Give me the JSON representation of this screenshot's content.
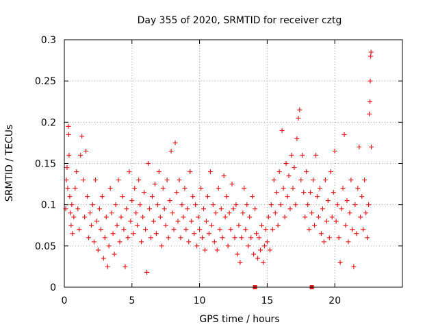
{
  "chart_data": {
    "type": "scatter",
    "title": "Day 355 of 2020, SRMTID for receiver cztg",
    "xlabel": "GPS time / hours",
    "ylabel": "SRMTID / TECUs",
    "xlim": [
      0,
      25
    ],
    "ylim": [
      0,
      0.3
    ],
    "xticks": [
      0,
      5,
      10,
      15,
      20
    ],
    "xtick_labels": [
      "0",
      "5",
      "10",
      "15",
      "20"
    ],
    "yticks": [
      0,
      0.05,
      0.1,
      0.15,
      0.2,
      0.25,
      0.3
    ],
    "ytick_labels": [
      "0",
      "0.05",
      "0.1",
      "0.15",
      "0.2",
      "0.25",
      "0.3"
    ],
    "grid": true,
    "series": [
      {
        "name": "SRMTID",
        "marker": "plus",
        "color": "#e41a1c",
        "x_range": [
          0.0,
          22.7
        ],
        "points": [
          [
            0.1,
            0.095
          ],
          [
            0.15,
            0.13
          ],
          [
            0.2,
            0.145
          ],
          [
            0.25,
            0.12
          ],
          [
            0.3,
            0.195
          ],
          [
            0.32,
            0.185
          ],
          [
            0.35,
            0.16
          ],
          [
            0.4,
            0.11
          ],
          [
            0.45,
            0.09
          ],
          [
            0.5,
            0.075
          ],
          [
            0.55,
            0.1
          ],
          [
            0.6,
            0.065
          ],
          [
            0.7,
            0.085
          ],
          [
            0.8,
            0.12
          ],
          [
            0.9,
            0.14
          ],
          [
            1.0,
            0.095
          ],
          [
            1.1,
            0.07
          ],
          [
            1.2,
            0.16
          ],
          [
            1.3,
            0.183
          ],
          [
            1.4,
            0.13
          ],
          [
            1.5,
            0.085
          ],
          [
            1.6,
            0.165
          ],
          [
            1.7,
            0.11
          ],
          [
            1.8,
            0.06
          ],
          [
            1.9,
            0.09
          ],
          [
            2.0,
            0.075
          ],
          [
            2.1,
            0.1
          ],
          [
            2.2,
            0.055
          ],
          [
            2.3,
            0.13
          ],
          [
            2.4,
            0.08
          ],
          [
            2.5,
            0.045
          ],
          [
            2.6,
            0.095
          ],
          [
            2.7,
            0.07
          ],
          [
            2.8,
            0.11
          ],
          [
            2.9,
            0.035
          ],
          [
            3.0,
            0.06
          ],
          [
            3.1,
            0.085
          ],
          [
            3.2,
            0.025
          ],
          [
            3.3,
            0.05
          ],
          [
            3.4,
            0.12
          ],
          [
            3.5,
            0.09
          ],
          [
            3.6,
            0.065
          ],
          [
            3.7,
            0.04
          ],
          [
            3.8,
            0.1
          ],
          [
            3.9,
            0.075
          ],
          [
            4.0,
            0.13
          ],
          [
            4.1,
            0.055
          ],
          [
            4.2,
            0.085
          ],
          [
            4.3,
            0.11
          ],
          [
            4.4,
            0.07
          ],
          [
            4.5,
            0.025
          ],
          [
            4.6,
            0.095
          ],
          [
            4.7,
            0.06
          ],
          [
            4.8,
            0.14
          ],
          [
            4.9,
            0.08
          ],
          [
            5.0,
            0.105
          ],
          [
            5.1,
            0.065
          ],
          [
            5.2,
            0.12
          ],
          [
            5.3,
            0.09
          ],
          [
            5.4,
            0.075
          ],
          [
            5.5,
            0.13
          ],
          [
            5.6,
            0.1
          ],
          [
            5.7,
            0.055
          ],
          [
            5.8,
            0.085
          ],
          [
            5.9,
            0.115
          ],
          [
            6.0,
            0.07
          ],
          [
            6.1,
            0.018
          ],
          [
            6.2,
            0.15
          ],
          [
            6.3,
            0.095
          ],
          [
            6.4,
            0.06
          ],
          [
            6.5,
            0.11
          ],
          [
            6.6,
            0.08
          ],
          [
            6.7,
            0.125
          ],
          [
            6.8,
            0.065
          ],
          [
            6.9,
            0.1
          ],
          [
            7.0,
            0.14
          ],
          [
            7.1,
            0.085
          ],
          [
            7.2,
            0.05
          ],
          [
            7.3,
            0.12
          ],
          [
            7.4,
            0.095
          ],
          [
            7.5,
            0.075
          ],
          [
            7.6,
            0.13
          ],
          [
            7.7,
            0.06
          ],
          [
            7.8,
            0.105
          ],
          [
            7.9,
            0.165
          ],
          [
            8.0,
            0.09
          ],
          [
            8.1,
            0.07
          ],
          [
            8.2,
            0.175
          ],
          [
            8.3,
            0.115
          ],
          [
            8.4,
            0.08
          ],
          [
            8.5,
            0.13
          ],
          [
            8.6,
            0.06
          ],
          [
            8.7,
            0.1
          ],
          [
            8.8,
            0.085
          ],
          [
            8.9,
            0.12
          ],
          [
            9.0,
            0.07
          ],
          [
            9.1,
            0.095
          ],
          [
            9.2,
            0.055
          ],
          [
            9.3,
            0.14
          ],
          [
            9.4,
            0.08
          ],
          [
            9.5,
            0.11
          ],
          [
            9.6,
            0.065
          ],
          [
            9.7,
            0.1
          ],
          [
            9.8,
            0.05
          ],
          [
            9.9,
            0.085
          ],
          [
            10.0,
            0.07
          ],
          [
            10.1,
            0.12
          ],
          [
            10.2,
            0.06
          ],
          [
            10.3,
            0.095
          ],
          [
            10.4,
            0.045
          ],
          [
            10.5,
            0.08
          ],
          [
            10.6,
            0.11
          ],
          [
            10.7,
            0.065
          ],
          [
            10.8,
            0.14
          ],
          [
            10.9,
            0.075
          ],
          [
            11.0,
            0.1
          ],
          [
            11.1,
            0.055
          ],
          [
            11.2,
            0.09
          ],
          [
            11.3,
            0.045
          ],
          [
            11.4,
            0.12
          ],
          [
            11.5,
            0.07
          ],
          [
            11.6,
            0.095
          ],
          [
            11.7,
            0.06
          ],
          [
            11.8,
            0.135
          ],
          [
            11.9,
            0.085
          ],
          [
            12.0,
            0.11
          ],
          [
            12.1,
            0.05
          ],
          [
            12.2,
            0.09
          ],
          [
            12.3,
            0.07
          ],
          [
            12.4,
            0.125
          ],
          [
            12.5,
            0.095
          ],
          [
            12.6,
            0.06
          ],
          [
            12.7,
            0.1
          ],
          [
            12.8,
            0.04
          ],
          [
            12.9,
            0.075
          ],
          [
            13.0,
            0.03
          ],
          [
            13.1,
            0.06
          ],
          [
            13.2,
            0.09
          ],
          [
            13.3,
            0.12
          ],
          [
            13.4,
            0.07
          ],
          [
            13.5,
            0.1
          ],
          [
            13.6,
            0.05
          ],
          [
            13.7,
            0.085
          ],
          [
            13.8,
            0.06
          ],
          [
            13.9,
            0.11
          ],
          [
            14.0,
            0.04
          ],
          [
            14.1,
            0.095
          ],
          [
            14.2,
            0.065
          ],
          [
            14.3,
            0.035
          ],
          [
            14.4,
            0.06
          ],
          [
            14.5,
            0.045
          ],
          [
            14.6,
            0.075
          ],
          [
            14.7,
            0.03
          ],
          [
            14.8,
            0.05
          ],
          [
            14.9,
            0.07
          ],
          [
            15.0,
            0.055
          ],
          [
            15.1,
            0.085
          ],
          [
            15.2,
            0.045
          ],
          [
            15.3,
            0.1
          ],
          [
            15.4,
            0.07
          ],
          [
            15.5,
            0.13
          ],
          [
            15.6,
            0.09
          ],
          [
            15.7,
            0.115
          ],
          [
            15.8,
            0.075
          ],
          [
            15.9,
            0.14
          ],
          [
            16.0,
            0.1
          ],
          [
            16.1,
            0.19
          ],
          [
            16.2,
            0.12
          ],
          [
            16.3,
            0.085
          ],
          [
            16.4,
            0.15
          ],
          [
            16.5,
            0.11
          ],
          [
            16.6,
            0.135
          ],
          [
            16.7,
            0.095
          ],
          [
            16.8,
            0.16
          ],
          [
            16.9,
            0.12
          ],
          [
            17.0,
            0.145
          ],
          [
            17.1,
            0.1
          ],
          [
            17.2,
            0.18
          ],
          [
            17.3,
            0.205
          ],
          [
            17.4,
            0.215
          ],
          [
            17.5,
            0.13
          ],
          [
            17.6,
            0.16
          ],
          [
            17.7,
            0.115
          ],
          [
            17.8,
            0.085
          ],
          [
            17.9,
            0.14
          ],
          [
            18.0,
            0.1
          ],
          [
            18.1,
            0.07
          ],
          [
            18.2,
            0.115
          ],
          [
            18.3,
            0.09
          ],
          [
            18.4,
            0.13
          ],
          [
            18.5,
            0.075
          ],
          [
            18.6,
            0.16
          ],
          [
            18.7,
            0.11
          ],
          [
            18.8,
            0.085
          ],
          [
            18.9,
            0.12
          ],
          [
            19.0,
            0.065
          ],
          [
            19.1,
            0.095
          ],
          [
            19.2,
            0.055
          ],
          [
            19.3,
            0.13
          ],
          [
            19.4,
            0.08
          ],
          [
            19.5,
            0.105
          ],
          [
            19.6,
            0.06
          ],
          [
            19.7,
            0.14
          ],
          [
            19.8,
            0.085
          ],
          [
            19.9,
            0.115
          ],
          [
            20.0,
            0.165
          ],
          [
            20.1,
            0.08
          ],
          [
            20.2,
            0.1
          ],
          [
            20.3,
            0.06
          ],
          [
            20.4,
            0.03
          ],
          [
            20.5,
            0.095
          ],
          [
            20.6,
            0.12
          ],
          [
            20.7,
            0.185
          ],
          [
            20.8,
            0.075
          ],
          [
            20.9,
            0.105
          ],
          [
            21.0,
            0.055
          ],
          [
            21.1,
            0.09
          ],
          [
            21.2,
            0.13
          ],
          [
            21.3,
            0.07
          ],
          [
            21.4,
            0.025
          ],
          [
            21.5,
            0.1
          ],
          [
            21.6,
            0.065
          ],
          [
            21.7,
            0.12
          ],
          [
            21.8,
            0.17
          ],
          [
            21.9,
            0.085
          ],
          [
            22.0,
            0.11
          ],
          [
            22.1,
            0.07
          ],
          [
            22.2,
            0.13
          ],
          [
            22.3,
            0.09
          ],
          [
            22.4,
            0.06
          ],
          [
            22.5,
            0.1
          ],
          [
            22.55,
            0.21
          ],
          [
            22.6,
            0.225
          ],
          [
            22.62,
            0.25
          ],
          [
            22.65,
            0.28
          ],
          [
            22.68,
            0.285
          ],
          [
            22.7,
            0.17
          ]
        ]
      }
    ],
    "markers_on_axis": [
      {
        "x": 14.1,
        "y": 0,
        "shape": "square"
      },
      {
        "x": 18.3,
        "y": 0,
        "shape": "square"
      }
    ]
  }
}
